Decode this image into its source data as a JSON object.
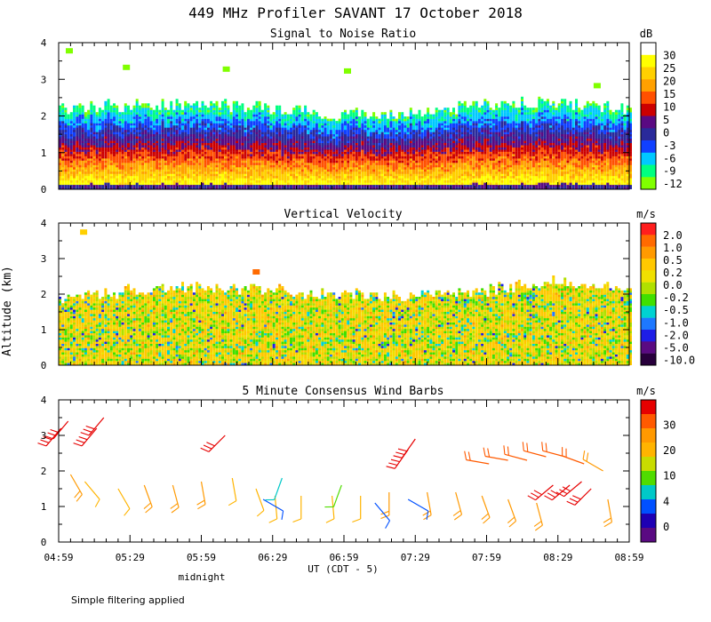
{
  "figure": {
    "title": "449 MHz Profiler SAVANT 17 October 2018",
    "ylabel": "Altitude (km)",
    "xlabel": "UT  (CDT - 5)",
    "midnight_label": "midnight",
    "footnote": "Simple filtering applied"
  },
  "chart_data": [
    {
      "type": "heatmap",
      "title": "Signal to Noise Ratio",
      "units": "dB",
      "ylim": [
        0,
        4
      ],
      "yticks": [
        "0",
        "1",
        "2",
        "3",
        "4"
      ],
      "colorbar": {
        "labels": [
          "30",
          "25",
          "20",
          "15",
          "10",
          "5",
          "0",
          "-3",
          "-6",
          "-9",
          "-12"
        ],
        "colors": [
          "#ffffff",
          "#ffff00",
          "#ffd000",
          "#ffa000",
          "#ff5000",
          "#cc0000",
          "#5a0a82",
          "#2a2a9a",
          "#1040ff",
          "#00c8ff",
          "#00ff80",
          "#80ff00"
        ]
      },
      "profile": [
        {
          "time": "04:59",
          "top_km": 2.2
        },
        {
          "time": "05:29",
          "top_km": 2.3
        },
        {
          "time": "05:59",
          "top_km": 2.3
        },
        {
          "time": "06:29",
          "top_km": 2.2
        },
        {
          "time": "06:59",
          "top_km": 2.0
        },
        {
          "time": "07:29",
          "top_km": 2.1
        },
        {
          "time": "07:59",
          "top_km": 2.3
        },
        {
          "time": "08:29",
          "top_km": 2.4
        },
        {
          "time": "08:59",
          "top_km": 2.2
        }
      ]
    },
    {
      "type": "heatmap",
      "title": "Vertical Velocity",
      "units": "m/s",
      "ylim": [
        0,
        4
      ],
      "yticks": [
        "0",
        "1",
        "2",
        "3",
        "4"
      ],
      "colorbar": {
        "labels": [
          "2.0",
          "1.0",
          "0.5",
          "0.2",
          "0.0",
          "-0.2",
          "-0.5",
          "-1.0",
          "-2.0",
          "-5.0",
          "-10.0"
        ],
        "colors": [
          "#ff1e1e",
          "#ff6a00",
          "#ff9a00",
          "#ffc800",
          "#f0e000",
          "#b0e000",
          "#40e000",
          "#00d2d2",
          "#1e78ff",
          "#1e1ee6",
          "#5a0a82",
          "#28003c"
        ]
      },
      "profile": [
        {
          "time": "04:59",
          "top_km": 1.8
        },
        {
          "time": "05:29",
          "top_km": 2.1
        },
        {
          "time": "05:59",
          "top_km": 2.2
        },
        {
          "time": "06:29",
          "top_km": 2.1
        },
        {
          "time": "06:59",
          "top_km": 2.0
        },
        {
          "time": "07:29",
          "top_km": 1.9
        },
        {
          "time": "07:59",
          "top_km": 2.1
        },
        {
          "time": "08:29",
          "top_km": 2.4
        },
        {
          "time": "08:59",
          "top_km": 2.1
        }
      ]
    },
    {
      "type": "scatter",
      "title": "5 Minute Consensus Wind Barbs",
      "units": "m/s",
      "ylim": [
        0,
        4
      ],
      "yticks": [
        "0",
        "1",
        "2",
        "3",
        "4"
      ],
      "xticks": [
        "04:59",
        "05:29",
        "05:59",
        "06:29",
        "06:59",
        "07:29",
        "07:59",
        "08:29",
        "08:59"
      ],
      "colorbar": {
        "labels": [
          "30",
          "20",
          "10",
          "4",
          "0"
        ],
        "colors": [
          "#e60000",
          "#ff5a00",
          "#ff9900",
          "#ffb400",
          "#c8dc00",
          "#50dc00",
          "#00c8c8",
          "#0050ff",
          "#1e00b4",
          "#5a0a82"
        ]
      },
      "barbs": [
        {
          "time": "05:00",
          "alt_km": 3.2,
          "speed": 28,
          "dir_deg": 220
        },
        {
          "time": "05:03",
          "alt_km": 3.4,
          "speed": 28,
          "dir_deg": 220
        },
        {
          "time": "05:15",
          "alt_km": 3.2,
          "speed": 30,
          "dir_deg": 220
        },
        {
          "time": "05:18",
          "alt_km": 3.5,
          "speed": 30,
          "dir_deg": 220
        },
        {
          "time": "06:09",
          "alt_km": 3.0,
          "speed": 26,
          "dir_deg": 225
        },
        {
          "time": "07:26",
          "alt_km": 2.6,
          "speed": 28,
          "dir_deg": 215
        },
        {
          "time": "07:29",
          "alt_km": 2.9,
          "speed": 28,
          "dir_deg": 215
        },
        {
          "time": "08:27",
          "alt_km": 1.6,
          "speed": 30,
          "dir_deg": 230
        },
        {
          "time": "08:34",
          "alt_km": 1.6,
          "speed": 30,
          "dir_deg": 230
        },
        {
          "time": "08:39",
          "alt_km": 1.7,
          "speed": 28,
          "dir_deg": 230
        },
        {
          "time": "08:43",
          "alt_km": 1.5,
          "speed": 28,
          "dir_deg": 225
        },
        {
          "time": "08:00",
          "alt_km": 2.2,
          "speed": 22,
          "dir_deg": 280
        },
        {
          "time": "08:08",
          "alt_km": 2.3,
          "speed": 22,
          "dir_deg": 280
        },
        {
          "time": "08:16",
          "alt_km": 2.3,
          "speed": 22,
          "dir_deg": 285
        },
        {
          "time": "08:24",
          "alt_km": 2.4,
          "speed": 22,
          "dir_deg": 285
        },
        {
          "time": "08:32",
          "alt_km": 2.4,
          "speed": 22,
          "dir_deg": 285
        },
        {
          "time": "08:40",
          "alt_km": 2.2,
          "speed": 20,
          "dir_deg": 290
        },
        {
          "time": "08:48",
          "alt_km": 2.0,
          "speed": 18,
          "dir_deg": 300
        },
        {
          "time": "05:04",
          "alt_km": 1.9,
          "speed": 16,
          "dir_deg": 150
        },
        {
          "time": "05:10",
          "alt_km": 1.7,
          "speed": 12,
          "dir_deg": 140
        },
        {
          "time": "05:24",
          "alt_km": 1.5,
          "speed": 14,
          "dir_deg": 150
        },
        {
          "time": "05:35",
          "alt_km": 1.6,
          "speed": 15,
          "dir_deg": 160
        },
        {
          "time": "05:47",
          "alt_km": 1.6,
          "speed": 16,
          "dir_deg": 165
        },
        {
          "time": "05:59",
          "alt_km": 1.7,
          "speed": 16,
          "dir_deg": 170
        },
        {
          "time": "06:12",
          "alt_km": 1.8,
          "speed": 14,
          "dir_deg": 170
        },
        {
          "time": "06:22",
          "alt_km": 1.5,
          "speed": 12,
          "dir_deg": 160
        },
        {
          "time": "06:30",
          "alt_km": 1.3,
          "speed": 13,
          "dir_deg": 175
        },
        {
          "time": "06:41",
          "alt_km": 1.3,
          "speed": 14,
          "dir_deg": 180
        },
        {
          "time": "06:54",
          "alt_km": 1.3,
          "speed": 14,
          "dir_deg": 175
        },
        {
          "time": "07:06",
          "alt_km": 1.3,
          "speed": 14,
          "dir_deg": 180
        },
        {
          "time": "07:18",
          "alt_km": 1.4,
          "speed": 15,
          "dir_deg": 180
        },
        {
          "time": "07:34",
          "alt_km": 1.4,
          "speed": 16,
          "dir_deg": 170
        },
        {
          "time": "07:46",
          "alt_km": 1.4,
          "speed": 17,
          "dir_deg": 165
        },
        {
          "time": "07:57",
          "alt_km": 1.3,
          "speed": 18,
          "dir_deg": 160
        },
        {
          "time": "08:08",
          "alt_km": 1.2,
          "speed": 18,
          "dir_deg": 160
        },
        {
          "time": "08:20",
          "alt_km": 1.1,
          "speed": 18,
          "dir_deg": 165
        },
        {
          "time": "08:50",
          "alt_km": 1.2,
          "speed": 18,
          "dir_deg": 170
        },
        {
          "time": "06:25",
          "alt_km": 1.2,
          "speed": 3,
          "dir_deg": 120
        },
        {
          "time": "06:33",
          "alt_km": 1.8,
          "speed": 5,
          "dir_deg": 200
        },
        {
          "time": "06:58",
          "alt_km": 1.6,
          "speed": 8,
          "dir_deg": 200
        },
        {
          "time": "07:12",
          "alt_km": 1.1,
          "speed": 4,
          "dir_deg": 140
        },
        {
          "time": "07:26",
          "alt_km": 1.2,
          "speed": 3,
          "dir_deg": 120
        }
      ]
    }
  ],
  "colors": {
    "axis": "#000000",
    "background": "#ffffff"
  }
}
